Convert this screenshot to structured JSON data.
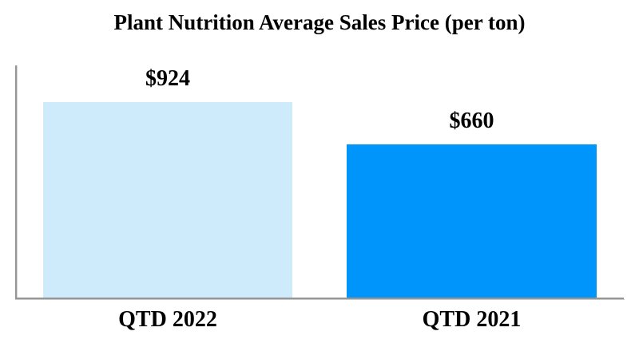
{
  "chart_data": {
    "type": "bar",
    "title": "Plant Nutrition Average Sales Price (per ton)",
    "categories": [
      "QTD 2022",
      "QTD 2021"
    ],
    "values": [
      924,
      660
    ],
    "value_labels": [
      "$924",
      "$660"
    ],
    "series": [
      {
        "name": "Plant Nutrition Average Sales Price",
        "values": [
          924,
          660
        ]
      }
    ],
    "xlabel": "",
    "ylabel": "",
    "ylim": [
      0,
      1000
    ],
    "grid": false,
    "legend_position": "none",
    "bar_colors": [
      "#CDEBFB",
      "#0095FB"
    ],
    "axis_color": "#969696",
    "text_color": "#000000",
    "background_color": "#FFFFFF"
  }
}
